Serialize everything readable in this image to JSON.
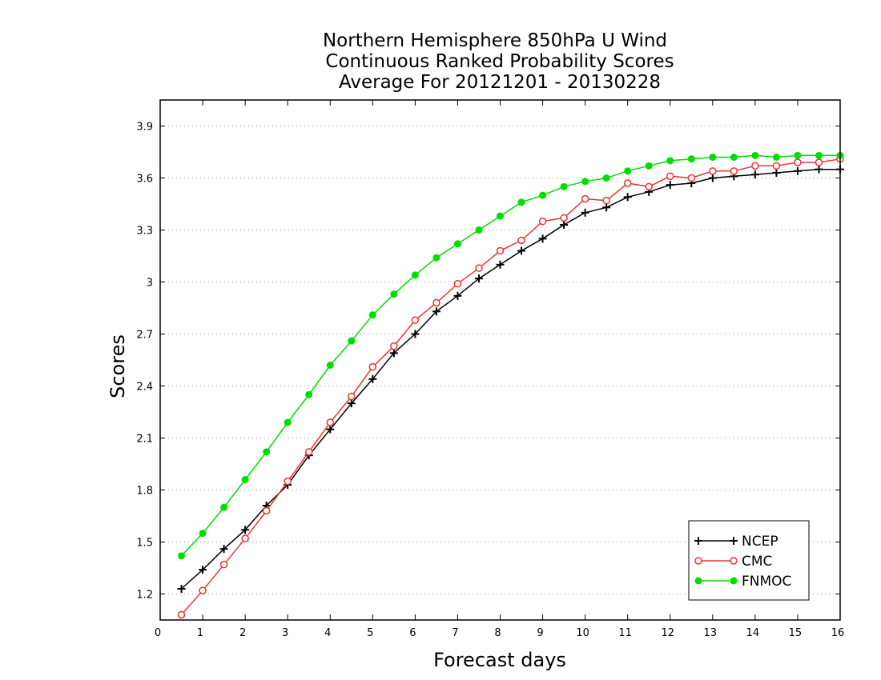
{
  "chart_data": {
    "type": "line",
    "title_lines": [
      "Northern Hemisphere 850hPa U Wind",
      "Continuous Ranked Probability Scores",
      "Average For 20121201 - 20130228"
    ],
    "xlabel": "Forecast days",
    "ylabel": "Scores",
    "xlim": [
      0,
      16
    ],
    "ylim": [
      1.05,
      4.05
    ],
    "xticks": [
      "0",
      "1",
      "2",
      "3",
      "4",
      "5",
      "6",
      "7",
      "8",
      "9",
      "10",
      "11",
      "12",
      "13",
      "14",
      "15",
      "16"
    ],
    "yticks": [
      "1.2",
      "1.5",
      "1.8",
      "2.1",
      "2.4",
      "2.7",
      "3",
      "3.3",
      "3.6",
      "3.9"
    ],
    "grid": "horizontal dotted",
    "legend_position": "bottom-right",
    "x": [
      0.5,
      1,
      1.5,
      2,
      2.5,
      3,
      3.5,
      4,
      4.5,
      5,
      5.5,
      6,
      6.5,
      7,
      7.5,
      8,
      8.5,
      9,
      9.5,
      10,
      10.5,
      11,
      11.5,
      12,
      12.5,
      13,
      13.5,
      14,
      14.5,
      15,
      15.5,
      16
    ],
    "series": [
      {
        "name": "NCEP",
        "color": "#000000",
        "marker": "plus",
        "values": [
          1.23,
          1.34,
          1.46,
          1.57,
          1.71,
          1.83,
          2.0,
          2.15,
          2.3,
          2.44,
          2.59,
          2.7,
          2.83,
          2.92,
          3.02,
          3.1,
          3.18,
          3.25,
          3.33,
          3.4,
          3.43,
          3.49,
          3.52,
          3.56,
          3.57,
          3.6,
          3.61,
          3.62,
          3.63,
          3.64,
          3.65,
          3.65
        ]
      },
      {
        "name": "CMC",
        "color": "#ee3333",
        "marker": "open-circle",
        "values": [
          1.08,
          1.22,
          1.37,
          1.52,
          1.68,
          1.85,
          2.02,
          2.19,
          2.34,
          2.51,
          2.63,
          2.78,
          2.88,
          2.99,
          3.08,
          3.18,
          3.24,
          3.35,
          3.37,
          3.48,
          3.47,
          3.57,
          3.55,
          3.61,
          3.6,
          3.64,
          3.64,
          3.67,
          3.67,
          3.69,
          3.69,
          3.71
        ]
      },
      {
        "name": "FNMOC",
        "color": "#00dd00",
        "marker": "filled-circle",
        "values": [
          1.42,
          1.55,
          1.7,
          1.86,
          2.02,
          2.19,
          2.35,
          2.52,
          2.66,
          2.81,
          2.93,
          3.04,
          3.14,
          3.22,
          3.3,
          3.38,
          3.46,
          3.5,
          3.55,
          3.58,
          3.6,
          3.64,
          3.67,
          3.7,
          3.71,
          3.72,
          3.72,
          3.73,
          3.72,
          3.73,
          3.73,
          3.73
        ]
      }
    ]
  }
}
